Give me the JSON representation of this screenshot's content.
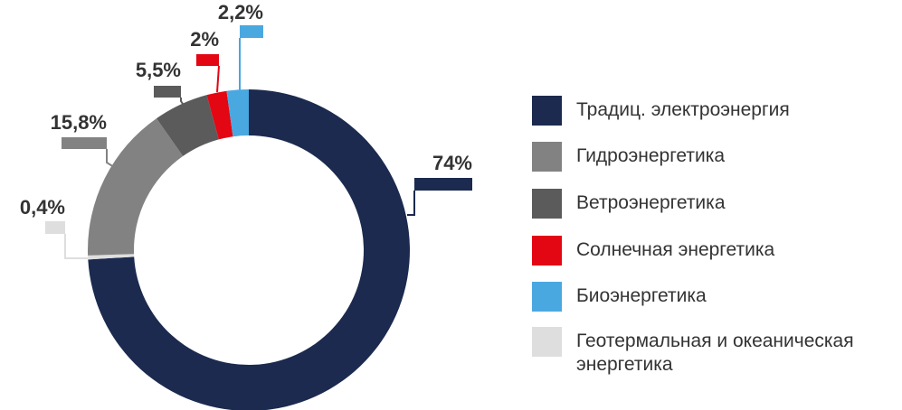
{
  "chart_data": {
    "type": "donut",
    "categories": [
      "Традиц. электроэнергия",
      "Гидроэнергетика",
      "Ветроэнергетика",
      "Солнечная энергетика",
      "Биоэнергетика",
      "Геотермальная и океаническая энергетика"
    ],
    "values": [
      74,
      15.8,
      5.5,
      2,
      2.2,
      0.4
    ],
    "value_labels": [
      "74%",
      "15,8%",
      "5,5%",
      "2%",
      "2,2%",
      "0,4%"
    ],
    "colors": [
      "#1b2a4e",
      "#828282",
      "#5b5b5b",
      "#e30613",
      "#4aa8e0",
      "#dedede"
    ],
    "legend": "right"
  }
}
